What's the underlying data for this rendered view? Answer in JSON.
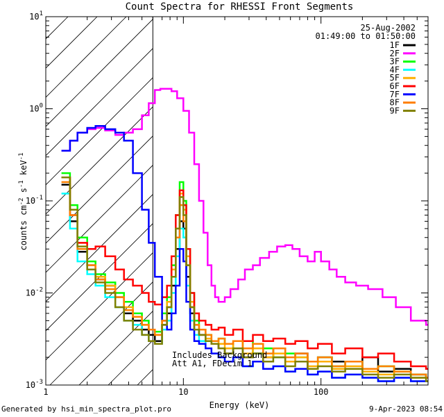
{
  "chart_data": {
    "type": "line",
    "title": "Count Spectra for RHESSI Front Segments",
    "xlabel": "Energy (keV)",
    "ylabel_parts": {
      "base": "counts cm",
      "exp1": "-2",
      "mid1": " s",
      "exp2": "-1",
      "mid2": " keV",
      "exp3": "-1"
    },
    "xscale": "log",
    "yscale": "log",
    "xlim": [
      1,
      600
    ],
    "ylim": [
      0.001,
      10
    ],
    "x_ticks": [
      {
        "v": 1,
        "label": "1"
      },
      {
        "v": 10,
        "label": "10"
      },
      {
        "v": 100,
        "label": "100"
      }
    ],
    "y_ticks": [
      {
        "v": 0.001,
        "base": "10",
        "exp": "-3"
      },
      {
        "v": 0.01,
        "base": "10",
        "exp": "-2"
      },
      {
        "v": 0.1,
        "base": "10",
        "exp": "-1"
      },
      {
        "v": 1,
        "base": "10",
        "exp": "0"
      },
      {
        "v": 10,
        "base": "10",
        "exp": "1"
      }
    ],
    "hatched_region_max_energy": 6,
    "date": "25-Aug-2002",
    "time_range": "01:49:00 to 01:50:00",
    "annotation_lines": [
      "Includes Background",
      "Att A1, FDecim 1"
    ],
    "legend_position": "top-right",
    "series": [
      {
        "name": "1F",
        "color": "#000000",
        "x": [
          1.3,
          1.5,
          1.7,
          2.0,
          2.3,
          2.7,
          3.2,
          3.7,
          4.3,
          5.0,
          5.6,
          6.2,
          7.0,
          7.6,
          8.2,
          8.8,
          9.4,
          10.0,
          10.5,
          11.2,
          12.0,
          13.0,
          14.5,
          16,
          18,
          20,
          23,
          27,
          32,
          38,
          45,
          55,
          65,
          80,
          95,
          120,
          150,
          200,
          260,
          340,
          450,
          580
        ],
        "y": [
          0.15,
          0.06,
          0.028,
          0.02,
          0.014,
          0.012,
          0.009,
          0.006,
          0.005,
          0.004,
          0.0035,
          0.003,
          0.0045,
          0.006,
          0.012,
          0.03,
          0.06,
          0.05,
          0.015,
          0.006,
          0.004,
          0.0035,
          0.003,
          0.0028,
          0.0025,
          0.0022,
          0.0025,
          0.002,
          0.0022,
          0.002,
          0.0025,
          0.0018,
          0.0022,
          0.0015,
          0.002,
          0.0018,
          0.0015,
          0.002,
          0.0014,
          0.0015,
          0.0013,
          0.0012
        ]
      },
      {
        "name": "2F",
        "color": "#ff00ff",
        "x": [
          1.3,
          1.5,
          1.7,
          2.0,
          2.3,
          2.7,
          3.2,
          3.7,
          4.3,
          5.0,
          5.6,
          6.2,
          6.8,
          7.5,
          8.2,
          9.0,
          10.0,
          11,
          12,
          13,
          14,
          15,
          16,
          17,
          18,
          20,
          22,
          25,
          28,
          32,
          36,
          42,
          48,
          55,
          62,
          70,
          80,
          90,
          100,
          115,
          130,
          150,
          180,
          220,
          280,
          350,
          450,
          580
        ],
        "y": [
          0.35,
          0.45,
          0.55,
          0.6,
          0.62,
          0.58,
          0.52,
          0.55,
          0.6,
          0.85,
          1.15,
          1.6,
          1.65,
          1.65,
          1.55,
          1.3,
          0.95,
          0.55,
          0.25,
          0.1,
          0.045,
          0.02,
          0.012,
          0.009,
          0.008,
          0.009,
          0.011,
          0.014,
          0.018,
          0.02,
          0.024,
          0.028,
          0.032,
          0.033,
          0.03,
          0.025,
          0.022,
          0.028,
          0.022,
          0.018,
          0.015,
          0.013,
          0.012,
          0.011,
          0.009,
          0.007,
          0.005,
          0.0045
        ]
      },
      {
        "name": "3F",
        "color": "#00ff00",
        "x": [
          1.3,
          1.5,
          1.7,
          2.0,
          2.3,
          2.7,
          3.2,
          3.7,
          4.3,
          5.0,
          5.6,
          6.2,
          7.0,
          7.6,
          8.2,
          8.8,
          9.4,
          10.0,
          10.5,
          11.2,
          12.0,
          13.0,
          14.5,
          16,
          18,
          20,
          23,
          27,
          32,
          38,
          45,
          55,
          65,
          80,
          95,
          120,
          150,
          200,
          260,
          340,
          450,
          580
        ],
        "y": [
          0.2,
          0.09,
          0.04,
          0.022,
          0.016,
          0.013,
          0.01,
          0.008,
          0.006,
          0.005,
          0.004,
          0.0038,
          0.006,
          0.009,
          0.02,
          0.07,
          0.16,
          0.1,
          0.03,
          0.01,
          0.005,
          0.004,
          0.0035,
          0.003,
          0.0032,
          0.0028,
          0.0025,
          0.003,
          0.0022,
          0.0025,
          0.002,
          0.0022,
          0.002,
          0.0018,
          0.002,
          0.0016,
          0.0018,
          0.0015,
          0.0016,
          0.0014,
          0.0013,
          0.0012
        ]
      },
      {
        "name": "4F",
        "color": "#00ffff",
        "x": [
          1.3,
          1.5,
          1.7,
          2.0,
          2.3,
          2.7,
          3.2,
          3.7,
          4.3,
          5.0,
          5.6,
          6.2,
          7.0,
          7.6,
          8.2,
          8.8,
          9.4,
          10.0,
          10.5,
          11.2,
          12.0,
          13.0,
          14.5,
          16,
          18,
          20,
          23,
          27,
          32,
          38,
          45,
          55,
          65,
          80,
          95,
          120,
          150,
          200,
          260,
          340,
          450,
          580
        ],
        "y": [
          0.12,
          0.05,
          0.022,
          0.016,
          0.012,
          0.009,
          0.007,
          0.005,
          0.0045,
          0.0035,
          0.003,
          0.0028,
          0.004,
          0.005,
          0.01,
          0.025,
          0.05,
          0.04,
          0.012,
          0.005,
          0.0035,
          0.003,
          0.0025,
          0.0022,
          0.002,
          0.0018,
          0.002,
          0.0016,
          0.0018,
          0.0015,
          0.0016,
          0.0014,
          0.0015,
          0.0013,
          0.0014,
          0.0012,
          0.0013,
          0.0012,
          0.0011,
          0.0012,
          0.0011,
          0.0011
        ]
      },
      {
        "name": "5F",
        "color": "#ffaf00",
        "x": [
          1.3,
          1.5,
          1.7,
          2.0,
          2.3,
          2.7,
          3.2,
          3.7,
          4.3,
          5.0,
          5.6,
          6.2,
          7.0,
          7.6,
          8.2,
          8.8,
          9.4,
          10.0,
          10.5,
          11.2,
          12.0,
          13.0,
          14.5,
          16,
          18,
          20,
          23,
          27,
          32,
          38,
          45,
          55,
          65,
          80,
          95,
          120,
          150,
          200,
          260,
          340,
          450,
          580
        ],
        "y": [
          0.18,
          0.08,
          0.035,
          0.02,
          0.015,
          0.012,
          0.009,
          0.007,
          0.0055,
          0.0045,
          0.004,
          0.0035,
          0.005,
          0.008,
          0.018,
          0.05,
          0.12,
          0.08,
          0.025,
          0.008,
          0.0045,
          0.004,
          0.0032,
          0.003,
          0.0028,
          0.0025,
          0.003,
          0.0022,
          0.0025,
          0.002,
          0.0022,
          0.0018,
          0.002,
          0.0016,
          0.0018,
          0.0015,
          0.0016,
          0.0014,
          0.0013,
          0.0014,
          0.0012,
          0.0012
        ]
      },
      {
        "name": "6F",
        "color": "#ff0000",
        "x": [
          1.3,
          1.5,
          1.7,
          2.0,
          2.3,
          2.7,
          3.2,
          3.7,
          4.3,
          5.0,
          5.6,
          6.2,
          7.0,
          7.6,
          8.2,
          8.8,
          9.4,
          10.0,
          10.5,
          11.2,
          12.0,
          13.0,
          14.5,
          16,
          18,
          20,
          23,
          27,
          32,
          38,
          45,
          55,
          65,
          80,
          95,
          120,
          150,
          200,
          260,
          340,
          450,
          580
        ],
        "y": [
          0.18,
          0.07,
          0.035,
          0.03,
          0.032,
          0.025,
          0.018,
          0.014,
          0.012,
          0.01,
          0.008,
          0.0075,
          0.009,
          0.012,
          0.025,
          0.07,
          0.13,
          0.09,
          0.03,
          0.01,
          0.006,
          0.005,
          0.0045,
          0.004,
          0.0042,
          0.0035,
          0.004,
          0.003,
          0.0035,
          0.003,
          0.0032,
          0.0028,
          0.003,
          0.0025,
          0.0028,
          0.0022,
          0.0025,
          0.002,
          0.0022,
          0.0018,
          0.0016,
          0.0015
        ]
      },
      {
        "name": "7F",
        "color": "#0000ff",
        "x": [
          1.3,
          1.5,
          1.7,
          2.0,
          2.3,
          2.7,
          3.2,
          3.7,
          4.3,
          5.0,
          5.6,
          6.2,
          7.0,
          7.6,
          8.2,
          8.8,
          9.4,
          10.0,
          10.5,
          11.2,
          12.0,
          13.0,
          14.5,
          16,
          18,
          20,
          23,
          27,
          32,
          38,
          45,
          55,
          65,
          80,
          95,
          120,
          150,
          200,
          260,
          340,
          450,
          580
        ],
        "y": [
          0.35,
          0.45,
          0.55,
          0.62,
          0.65,
          0.6,
          0.55,
          0.45,
          0.2,
          0.08,
          0.035,
          0.015,
          0.005,
          0.004,
          0.006,
          0.012,
          0.03,
          0.022,
          0.008,
          0.004,
          0.003,
          0.0028,
          0.0025,
          0.0022,
          0.002,
          0.0018,
          0.002,
          0.0016,
          0.0018,
          0.0015,
          0.0016,
          0.0014,
          0.0015,
          0.0013,
          0.0014,
          0.0012,
          0.0013,
          0.0012,
          0.0011,
          0.0012,
          0.0011,
          0.0011
        ]
      },
      {
        "name": "8F",
        "color": "#ff7f00",
        "x": [
          1.3,
          1.5,
          1.7,
          2.0,
          2.3,
          2.7,
          3.2,
          3.7,
          4.3,
          5.0,
          5.6,
          6.2,
          7.0,
          7.6,
          8.2,
          8.8,
          9.4,
          10.0,
          10.5,
          11.2,
          12.0,
          13.0,
          14.5,
          16,
          18,
          20,
          23,
          27,
          32,
          38,
          45,
          55,
          65,
          80,
          95,
          120,
          150,
          200,
          260,
          340,
          450,
          580
        ],
        "y": [
          0.16,
          0.07,
          0.03,
          0.02,
          0.014,
          0.011,
          0.009,
          0.0065,
          0.0055,
          0.0045,
          0.004,
          0.0035,
          0.005,
          0.007,
          0.015,
          0.04,
          0.09,
          0.06,
          0.02,
          0.007,
          0.0045,
          0.004,
          0.0035,
          0.003,
          0.0032,
          0.0028,
          0.003,
          0.0025,
          0.0028,
          0.0022,
          0.0025,
          0.002,
          0.0022,
          0.0018,
          0.002,
          0.0016,
          0.0018,
          0.0015,
          0.0016,
          0.0014,
          0.0013,
          0.0012
        ]
      },
      {
        "name": "9F",
        "color": "#808000",
        "x": [
          1.3,
          1.5,
          1.7,
          2.0,
          2.3,
          2.7,
          3.2,
          3.7,
          4.3,
          5.0,
          5.6,
          6.2,
          7.0,
          7.6,
          8.2,
          8.8,
          9.4,
          10.0,
          10.5,
          11.2,
          12.0,
          13.0,
          14.5,
          16,
          18,
          20,
          23,
          27,
          32,
          38,
          45,
          55,
          65,
          80,
          95,
          120,
          150,
          200,
          260,
          340,
          450,
          580
        ],
        "y": [
          0.18,
          0.08,
          0.032,
          0.018,
          0.013,
          0.01,
          0.007,
          0.005,
          0.004,
          0.0035,
          0.003,
          0.0028,
          0.0045,
          0.007,
          0.015,
          0.05,
          0.11,
          0.07,
          0.02,
          0.007,
          0.004,
          0.0035,
          0.003,
          0.0028,
          0.0025,
          0.0022,
          0.0025,
          0.002,
          0.0022,
          0.0018,
          0.002,
          0.0016,
          0.0018,
          0.0015,
          0.0016,
          0.0014,
          0.0015,
          0.0013,
          0.0012,
          0.0013,
          0.0012,
          0.0011
        ]
      }
    ]
  },
  "footer": {
    "generated_by": "Generated by hsi_min_spectra_plot.pro",
    "timestamp": "9-Apr-2023 08:54"
  }
}
